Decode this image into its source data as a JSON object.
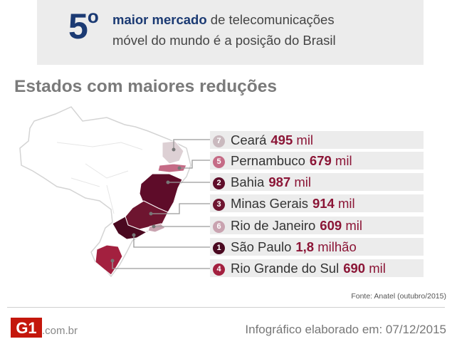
{
  "banner": {
    "rank": "5",
    "rank_suffix": "o",
    "line1_bold": "maior mercado",
    "line1_rest": " de telecomunicações",
    "line2": "móvel do mundo é a posição do Brasil"
  },
  "title": "Estados com maiores reduções",
  "states": [
    {
      "rank": "7",
      "name": "Ceará",
      "value": "495",
      "unit": "mil",
      "color": "#c9b9be"
    },
    {
      "rank": "5",
      "name": "Pernambuco",
      "value": "679",
      "unit": "mil",
      "color": "#c56b86"
    },
    {
      "rank": "2",
      "name": "Bahia",
      "value": "987",
      "unit": "mil",
      "color": "#5e0c29"
    },
    {
      "rank": "3",
      "name": "Minas Gerais",
      "value": "914",
      "unit": "mil",
      "color": "#6e1530"
    },
    {
      "rank": "6",
      "name": "Rio de Janeiro",
      "value": "609",
      "unit": "mil",
      "color": "#c9a3b0"
    },
    {
      "rank": "1",
      "name": "São Paulo",
      "value": "1,8",
      "unit": "milhão",
      "color": "#4a0920"
    },
    {
      "rank": "4",
      "name": "Rio Grande do Sul",
      "value": "690",
      "unit": "mil",
      "color": "#a3203f"
    }
  ],
  "source": "Fonte: Anatel (outubro/2015)",
  "footer": {
    "logo_text": "G1",
    "domain": ".com.br",
    "credit": "Infográfico elaborado em: 07/12/2015"
  },
  "colors": {
    "brand_blue": "#1b3a73",
    "value_red": "#8b1536",
    "logo_red": "#c4170c"
  }
}
